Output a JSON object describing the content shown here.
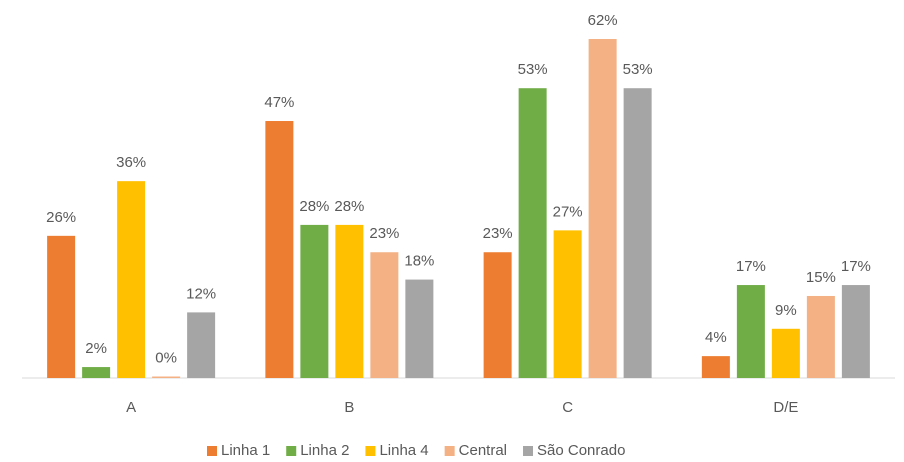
{
  "chart_data": {
    "type": "bar",
    "categories": [
      "A",
      "B",
      "C",
      "D/E"
    ],
    "series": [
      {
        "name": "Linha 1",
        "color": "#ed7d31",
        "values": [
          26,
          47,
          23,
          4
        ],
        "value_labels": [
          "26%",
          "47%",
          "23%",
          "4%"
        ]
      },
      {
        "name": "Linha 2",
        "color": "#70ad47",
        "values": [
          2,
          28,
          53,
          17
        ],
        "value_labels": [
          "2%",
          "28%",
          "53%",
          "17%"
        ]
      },
      {
        "name": "Linha 4",
        "color": "#ffc000",
        "values": [
          36,
          28,
          27,
          9
        ],
        "value_labels": [
          "36%",
          "28%",
          "27%",
          "9%"
        ]
      },
      {
        "name": "Central",
        "color": "#f4b183",
        "values": [
          0,
          23,
          62,
          15
        ],
        "value_labels": [
          "0%",
          "23%",
          "62%",
          "15%"
        ]
      },
      {
        "name": "São Conrado",
        "color": "#a5a5a5",
        "values": [
          12,
          18,
          53,
          17
        ],
        "value_labels": [
          "12%",
          "18%",
          "53%",
          "17%"
        ]
      }
    ],
    "legend": "bottom"
  }
}
